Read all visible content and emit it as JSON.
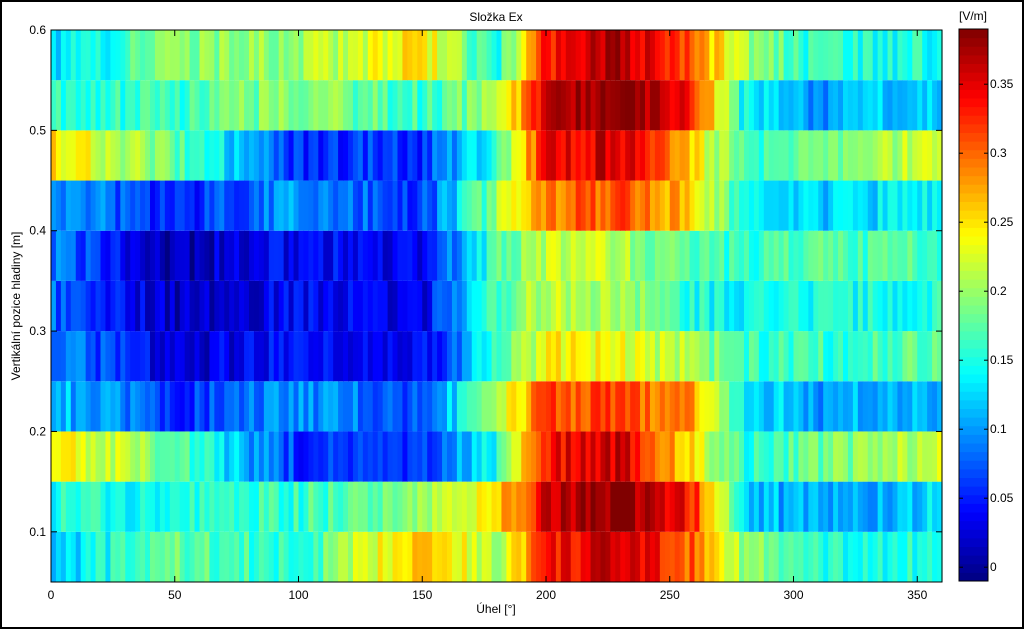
{
  "chart_data": {
    "type": "heatmap",
    "title": "Složka Ex",
    "xlabel": "Úhel [°]",
    "ylabel": "Vertikální pozice hladiny [m]",
    "xlim": [
      0,
      360
    ],
    "ylim": [
      0.05,
      0.6
    ],
    "x_ticks": [
      "0",
      "50",
      "100",
      "150",
      "200",
      "250",
      "300",
      "350"
    ],
    "y_ticks": [
      "0.1",
      "0.2",
      "0.3",
      "0.4",
      "0.5",
      "0.6"
    ],
    "colorbar": {
      "label": "[V/m]",
      "range": [
        -0.01,
        0.39
      ],
      "ticks": [
        "0",
        "0.05",
        "0.1",
        "0.15",
        "0.2",
        "0.25",
        "0.3",
        "0.35"
      ]
    },
    "colormap": "jet",
    "x_profile": [
      0,
      50,
      100,
      150,
      180,
      200,
      230,
      260,
      280,
      310,
      360
    ],
    "rows": [
      {
        "y_range": [
          0.05,
          0.1
        ],
        "profile": [
          0.12,
          0.18,
          0.15,
          0.28,
          0.2,
          0.33,
          0.36,
          0.3,
          0.2,
          0.15,
          0.15
        ]
      },
      {
        "y_range": [
          0.1,
          0.15
        ],
        "profile": [
          0.15,
          0.15,
          0.16,
          0.2,
          0.25,
          0.36,
          0.39,
          0.33,
          0.12,
          0.1,
          0.13
        ]
      },
      {
        "y_range": [
          0.15,
          0.2
        ],
        "profile": [
          0.25,
          0.18,
          0.06,
          0.05,
          0.15,
          0.34,
          0.36,
          0.25,
          0.15,
          0.18,
          0.22
        ]
      },
      {
        "y_range": [
          0.2,
          0.25
        ],
        "profile": [
          0.12,
          0.06,
          0.1,
          0.07,
          0.2,
          0.31,
          0.31,
          0.28,
          0.14,
          0.1,
          0.12
        ]
      },
      {
        "y_range": [
          0.25,
          0.3
        ],
        "profile": [
          0.1,
          0.02,
          0.05,
          0.03,
          0.16,
          0.24,
          0.23,
          0.2,
          0.16,
          0.16,
          0.18
        ]
      },
      {
        "y_range": [
          0.3,
          0.35
        ],
        "profile": [
          0.08,
          0.01,
          0.04,
          0.03,
          0.17,
          0.22,
          0.2,
          0.15,
          0.14,
          0.15,
          0.15
        ]
      },
      {
        "y_range": [
          0.35,
          0.4
        ],
        "profile": [
          0.09,
          0.01,
          0.04,
          0.03,
          0.17,
          0.22,
          0.21,
          0.16,
          0.16,
          0.17,
          0.17
        ]
      },
      {
        "y_range": [
          0.4,
          0.45
        ],
        "profile": [
          0.11,
          0.05,
          0.1,
          0.06,
          0.2,
          0.29,
          0.31,
          0.26,
          0.14,
          0.12,
          0.14
        ]
      },
      {
        "y_range": [
          0.45,
          0.5
        ],
        "profile": [
          0.25,
          0.18,
          0.06,
          0.06,
          0.16,
          0.34,
          0.36,
          0.25,
          0.16,
          0.18,
          0.22
        ]
      },
      {
        "y_range": [
          0.5,
          0.55
        ],
        "profile": [
          0.15,
          0.16,
          0.2,
          0.16,
          0.2,
          0.36,
          0.39,
          0.33,
          0.14,
          0.1,
          0.13
        ]
      },
      {
        "y_range": [
          0.55,
          0.6
        ],
        "profile": [
          0.12,
          0.19,
          0.2,
          0.25,
          0.14,
          0.33,
          0.37,
          0.3,
          0.2,
          0.15,
          0.15
        ]
      }
    ]
  }
}
